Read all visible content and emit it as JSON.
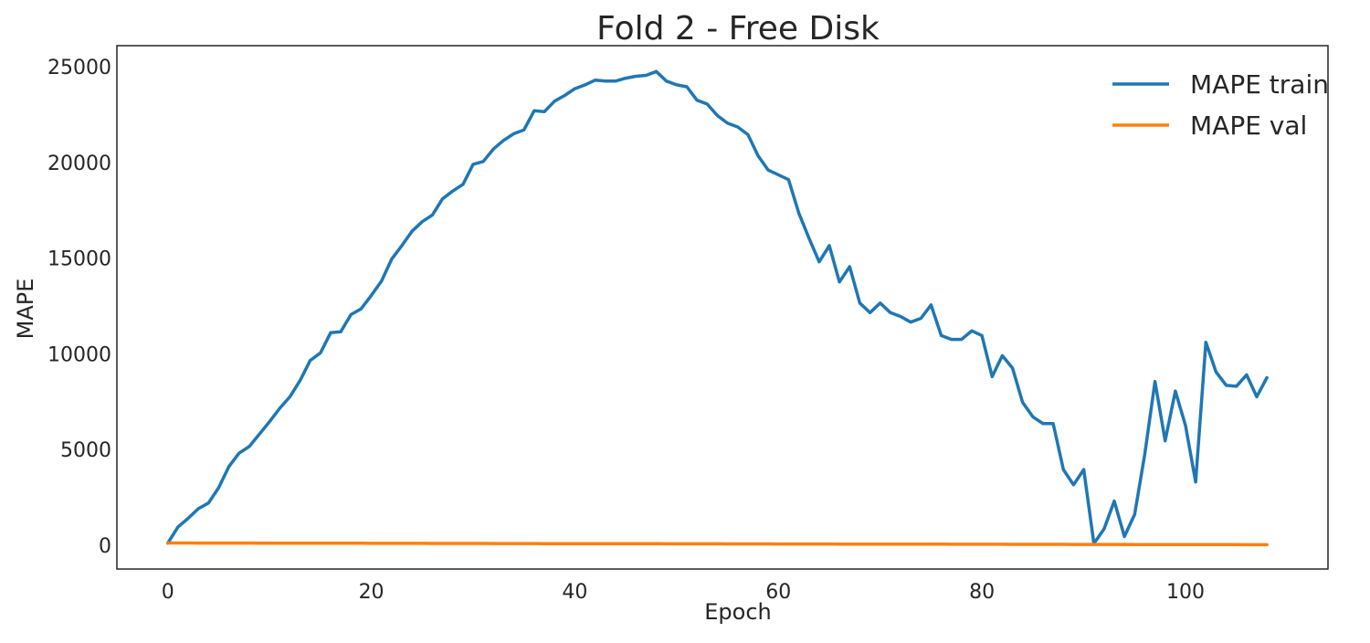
{
  "chart_data": {
    "type": "line",
    "title": "Fold 2 - Free Disk",
    "xlabel": "Epoch",
    "ylabel": "MAPE",
    "xlim": [
      -5,
      114
    ],
    "ylim": [
      -1250,
      26100
    ],
    "xticks": [
      0,
      20,
      40,
      60,
      80,
      100
    ],
    "yticks": [
      0,
      5000,
      10000,
      15000,
      20000,
      25000
    ],
    "grid": false,
    "legend_position": "top-right",
    "series": [
      {
        "name": "MAPE train",
        "color": "#1f77b4",
        "values": [
          100,
          950,
          1400,
          1900,
          2200,
          3000,
          4100,
          4800,
          5150,
          5800,
          6450,
          7150,
          7750,
          8600,
          9650,
          10050,
          11100,
          11150,
          12050,
          12350,
          13050,
          13800,
          14950,
          15650,
          16400,
          16900,
          17250,
          18100,
          18500,
          18850,
          19900,
          20050,
          20700,
          21150,
          21500,
          21700,
          22700,
          22650,
          23200,
          23500,
          23850,
          24050,
          24300,
          24250,
          24250,
          24400,
          24500,
          24550,
          24750,
          24250,
          24050,
          23950,
          23250,
          23050,
          22450,
          22050,
          21850,
          21450,
          20350,
          19600,
          19350,
          19100,
          17350,
          16050,
          14800,
          15650,
          13750,
          14550,
          12650,
          12150,
          12650,
          12150,
          11950,
          11650,
          11850,
          12550,
          10950,
          10750,
          10750,
          11200,
          10950,
          8800,
          9900,
          9250,
          7450,
          6700,
          6350,
          6350,
          3950,
          3150,
          3950,
          80,
          850,
          2300,
          450,
          1600,
          4750,
          8550,
          5450,
          8050,
          6250,
          3300,
          10600,
          9050,
          8350,
          8300,
          8900,
          7750,
          8750
        ]
      },
      {
        "name": "MAPE val",
        "color": "#ff7f0e",
        "start": 110,
        "end": 20
      }
    ]
  }
}
